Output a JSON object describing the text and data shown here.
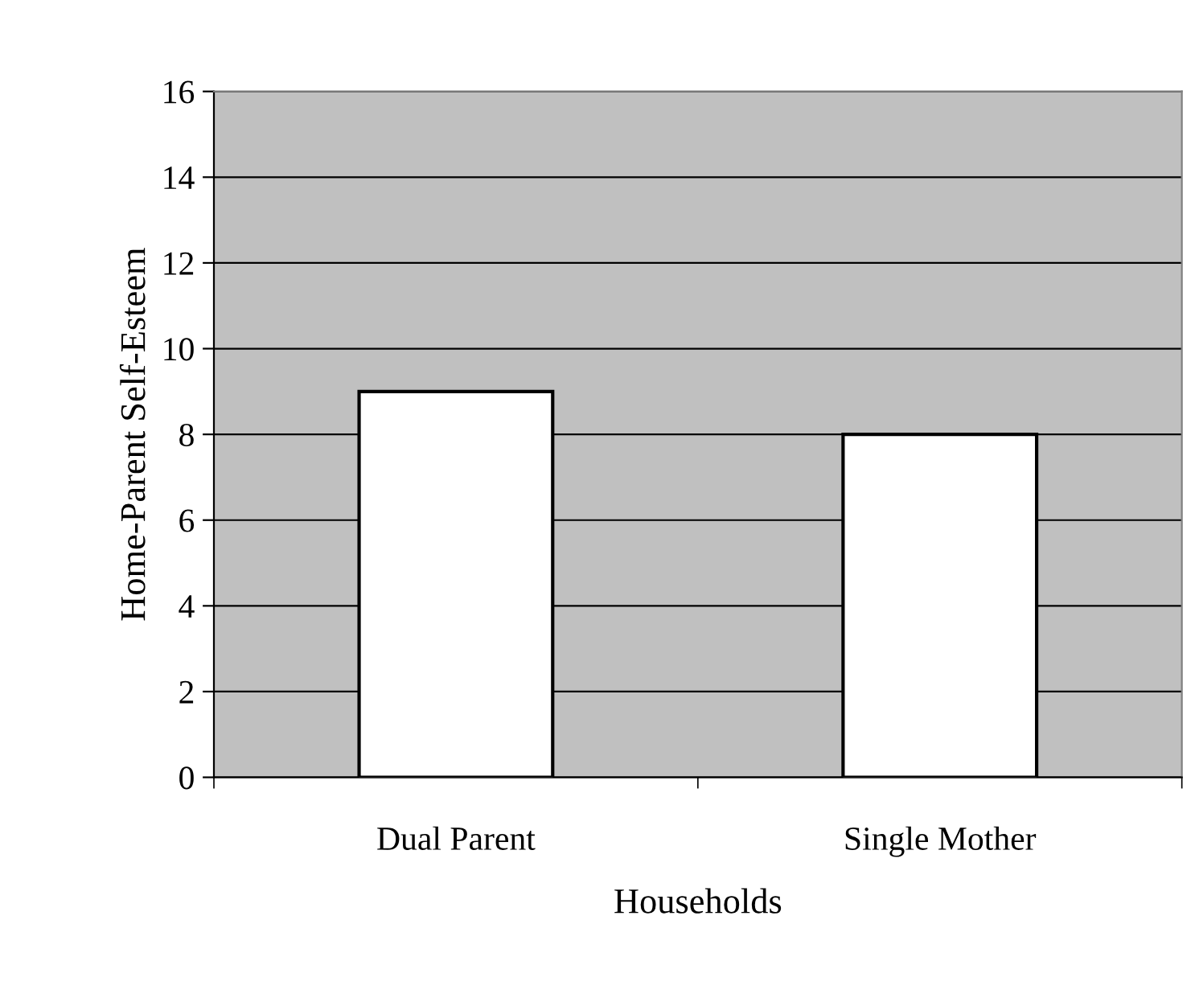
{
  "chart_data": {
    "type": "bar",
    "xlabel": "Households",
    "ylabel": "Home-Parent Self-Esteem",
    "categories": [
      "Dual Parent",
      "Single Mother"
    ],
    "values": [
      9,
      8
    ],
    "color": "#ffffff",
    "ylim": [
      0,
      16
    ],
    "yticks": [
      0,
      2,
      4,
      6,
      8,
      10,
      12,
      14,
      16
    ],
    "grid": "y",
    "legend": false
  }
}
